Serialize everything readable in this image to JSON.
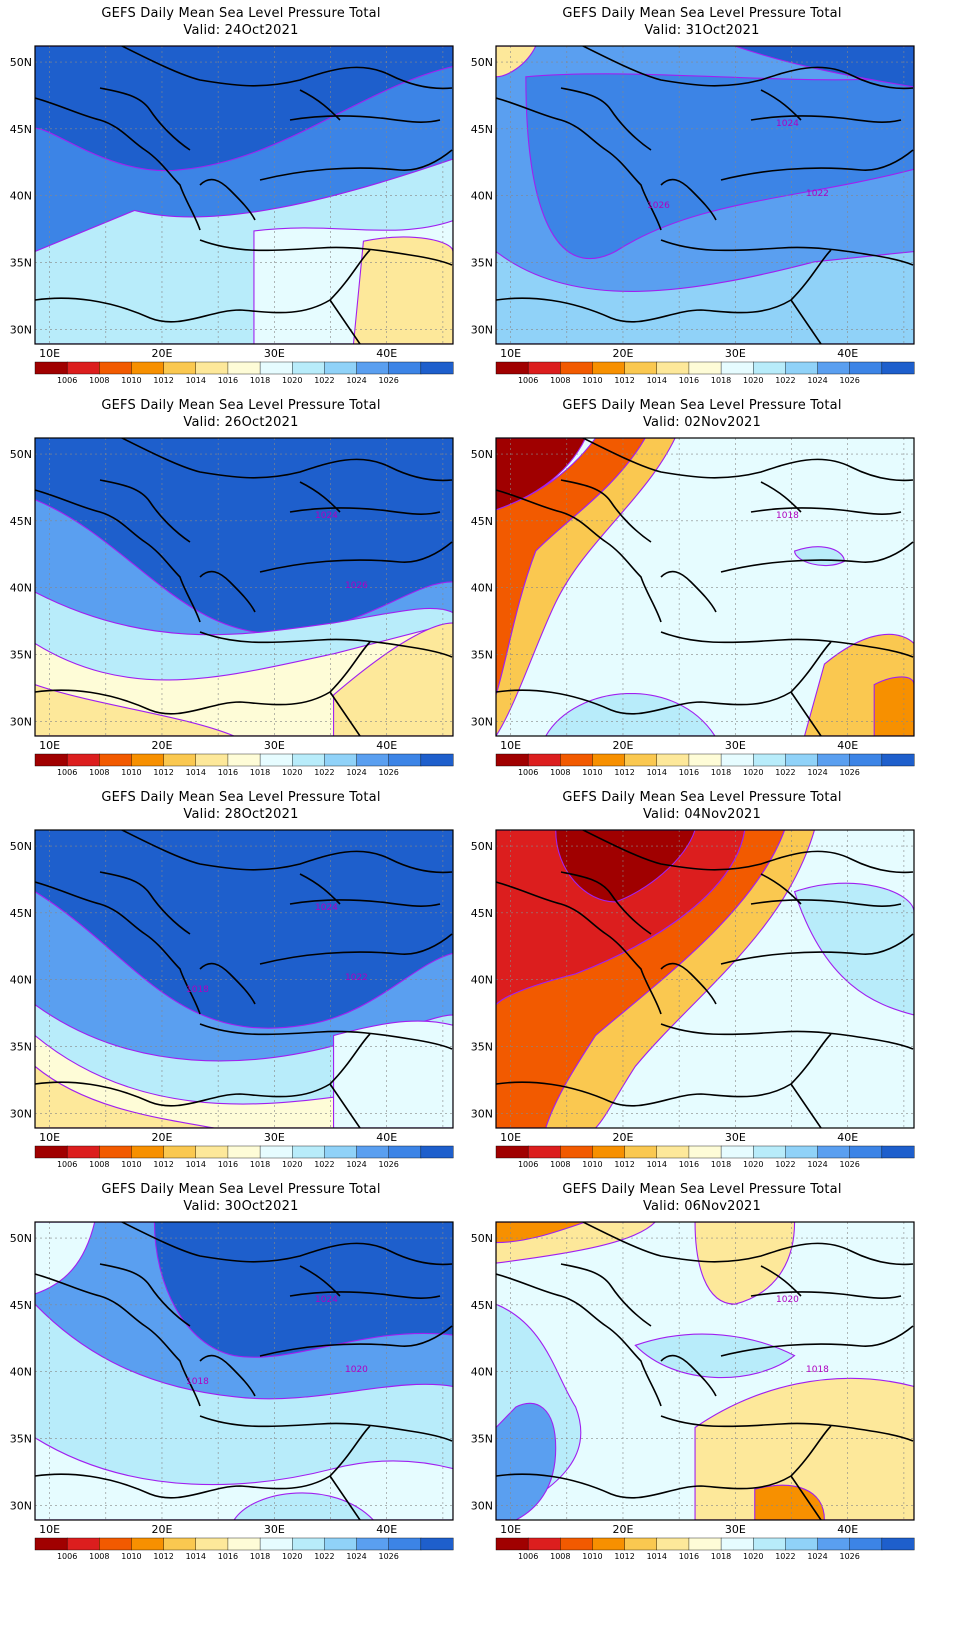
{
  "common": {
    "title": "GEFS Daily Mean Sea Level Pressure Total",
    "lat_labels": [
      "50N",
      "45N",
      "40N",
      "35N",
      "30N"
    ],
    "lon_labels": [
      "10E",
      "20E",
      "30E",
      "40E"
    ],
    "colorbar_ticks": [
      "1006",
      "1008",
      "1010",
      "1012",
      "1014",
      "1016",
      "1018",
      "1020",
      "1022",
      "1024",
      "1026"
    ],
    "colorbar_colors": [
      "#a00000",
      "#dc1e1e",
      "#f25a00",
      "#f79000",
      "#fac850",
      "#fde89a",
      "#fefcd7",
      "#e6fcff",
      "#b8ecfa",
      "#90d2f8",
      "#5a9ff0",
      "#3c84e6",
      "#1e5fcc"
    ],
    "contour_color": "#a020f0"
  },
  "panels": [
    {
      "valid": "Valid: 24Oct2021",
      "labels": []
    },
    {
      "valid": "Valid: 31Oct2021",
      "labels": [
        "1024",
        "1022",
        "1026"
      ]
    },
    {
      "valid": "Valid: 26Oct2021",
      "labels": [
        "1024",
        "1026"
      ]
    },
    {
      "valid": "Valid: 02Nov2021",
      "labels": [
        "1018"
      ]
    },
    {
      "valid": "Valid: 28Oct2021",
      "labels": [
        "1024",
        "1022",
        "1018"
      ]
    },
    {
      "valid": "Valid: 04Nov2021",
      "labels": []
    },
    {
      "valid": "Valid: 30Oct2021",
      "labels": [
        "1024",
        "1020",
        "1018"
      ]
    },
    {
      "valid": "Valid: 06Nov2021",
      "labels": [
        "1020",
        "1018"
      ]
    }
  ]
}
